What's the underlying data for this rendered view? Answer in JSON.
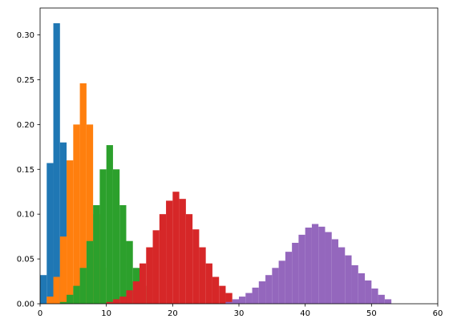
{
  "chart_data": {
    "type": "bar",
    "title": "",
    "xlabel": "",
    "ylabel": "",
    "xlim": [
      0,
      60
    ],
    "ylim": [
      0,
      0.33
    ],
    "xticks": [
      0,
      10,
      20,
      30,
      40,
      50,
      60
    ],
    "xtick_labels": [
      "0",
      "10",
      "20",
      "30",
      "40",
      "50",
      "60"
    ],
    "yticks": [
      0.0,
      0.05,
      0.1,
      0.15,
      0.2,
      0.25,
      0.3
    ],
    "ytick_labels": [
      "0.00",
      "0.05",
      "0.10",
      "0.15",
      "0.20",
      "0.25",
      "0.30"
    ],
    "grid": false,
    "legend": "none",
    "series": [
      {
        "color": "#1f77b4",
        "x": [
          0,
          1,
          2,
          3
        ],
        "values": [
          0.032,
          0.157,
          0.313,
          0.18
        ]
      },
      {
        "color": "#ff7f0e",
        "x": [
          1,
          2,
          3,
          4,
          5,
          6,
          7,
          8,
          9
        ],
        "values": [
          0.008,
          0.03,
          0.075,
          0.16,
          0.2,
          0.246,
          0.2,
          0.1,
          0.04
        ]
      },
      {
        "color": "#2ca02c",
        "x": [
          3,
          4,
          5,
          6,
          7,
          8,
          9,
          10,
          11,
          12,
          13,
          14,
          15
        ],
        "values": [
          0.002,
          0.01,
          0.02,
          0.04,
          0.07,
          0.11,
          0.15,
          0.177,
          0.15,
          0.11,
          0.07,
          0.04,
          0.02
        ]
      },
      {
        "color": "#d62728",
        "x": [
          10,
          11,
          12,
          13,
          14,
          15,
          16,
          17,
          18,
          19,
          20,
          21,
          22,
          23,
          24,
          25,
          26,
          27,
          28
        ],
        "values": [
          0.002,
          0.005,
          0.008,
          0.015,
          0.025,
          0.045,
          0.063,
          0.082,
          0.1,
          0.115,
          0.125,
          0.117,
          0.1,
          0.083,
          0.063,
          0.045,
          0.03,
          0.02,
          0.012
        ]
      },
      {
        "color": "#9467bd",
        "x": [
          28,
          29,
          30,
          31,
          32,
          33,
          34,
          35,
          36,
          37,
          38,
          39,
          40,
          41,
          42,
          43,
          44,
          45,
          46,
          47,
          48,
          49,
          50,
          51,
          52
        ],
        "values": [
          0.002,
          0.005,
          0.008,
          0.012,
          0.018,
          0.025,
          0.032,
          0.04,
          0.048,
          0.058,
          0.068,
          0.077,
          0.085,
          0.089,
          0.086,
          0.08,
          0.072,
          0.063,
          0.054,
          0.043,
          0.034,
          0.026,
          0.017,
          0.01,
          0.005
        ]
      }
    ]
  }
}
